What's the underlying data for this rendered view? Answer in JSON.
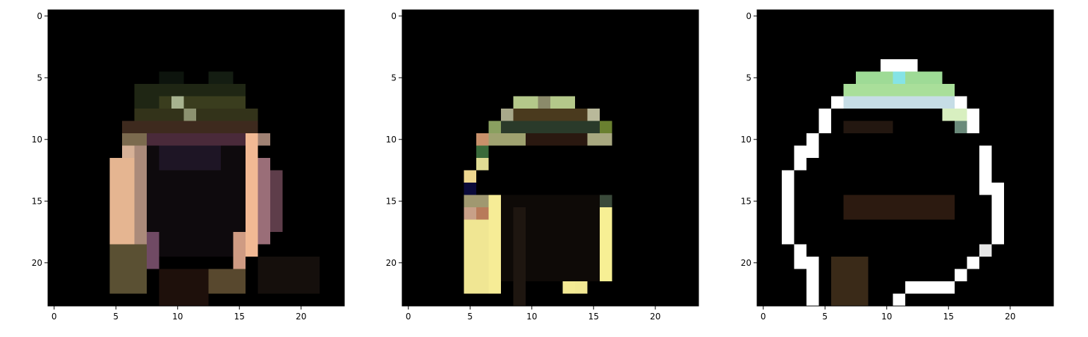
{
  "chart_data": [
    {
      "type": "heatmap",
      "image_size": [
        24,
        24
      ],
      "xlim": [
        -0.5,
        23.5
      ],
      "ylim": [
        23.5,
        -0.5
      ],
      "x_ticks": [
        0,
        5,
        10,
        15,
        20
      ],
      "y_ticks": [
        0,
        5,
        10,
        15,
        20
      ],
      "background": "#000000",
      "blocks": [
        {
          "x": [
            9,
            10
          ],
          "y": [
            5,
            5
          ],
          "color": "#0d140d"
        },
        {
          "x": [
            13,
            14
          ],
          "y": [
            5,
            5
          ],
          "color": "#141d12"
        },
        {
          "x": [
            7,
            15
          ],
          "y": [
            6,
            7
          ],
          "color": "#1f2614"
        },
        {
          "x": [
            9,
            15
          ],
          "y": [
            7,
            7
          ],
          "color": "#3a3d1e"
        },
        {
          "x": [
            10,
            10
          ],
          "y": [
            7,
            7
          ],
          "color": "#a7b38f"
        },
        {
          "x": [
            7,
            16
          ],
          "y": [
            8,
            8
          ],
          "color": "#33331a"
        },
        {
          "x": [
            11,
            11
          ],
          "y": [
            8,
            8
          ],
          "color": "#8c9270"
        },
        {
          "x": [
            6,
            16
          ],
          "y": [
            9,
            9
          ],
          "color": "#3e2a1e"
        },
        {
          "x": [
            6,
            7
          ],
          "y": [
            10,
            10
          ],
          "color": "#7b6a4e"
        },
        {
          "x": [
            8,
            15
          ],
          "y": [
            10,
            10
          ],
          "color": "#4a2a3a"
        },
        {
          "x": [
            16,
            17
          ],
          "y": [
            10,
            10
          ],
          "color": "#a08274"
        },
        {
          "x": [
            6,
            6
          ],
          "y": [
            11,
            20
          ],
          "color": "#d7b197"
        },
        {
          "x": [
            5,
            6
          ],
          "y": [
            12,
            18
          ],
          "color": "#e5b591"
        },
        {
          "x": [
            7,
            7
          ],
          "y": [
            11,
            19
          ],
          "color": "#aa8a7a"
        },
        {
          "x": [
            8,
            15
          ],
          "y": [
            11,
            19
          ],
          "color": "#0e0a0d"
        },
        {
          "x": [
            9,
            13
          ],
          "y": [
            11,
            12
          ],
          "color": "#1e1525"
        },
        {
          "x": [
            16,
            16
          ],
          "y": [
            10,
            19
          ],
          "color": "#f2b994"
        },
        {
          "x": [
            15,
            15
          ],
          "y": [
            18,
            20
          ],
          "color": "#cf9b83"
        },
        {
          "x": [
            17,
            17
          ],
          "y": [
            12,
            18
          ],
          "color": "#9a6e78"
        },
        {
          "x": [
            18,
            18
          ],
          "y": [
            13,
            17
          ],
          "color": "#5e3d4a"
        },
        {
          "x": [
            8,
            8
          ],
          "y": [
            18,
            20
          ],
          "color": "#704a64"
        },
        {
          "x": [
            5,
            7
          ],
          "y": [
            19,
            22
          ],
          "color": "#5a5033"
        },
        {
          "x": [
            13,
            15
          ],
          "y": [
            21,
            22
          ],
          "color": "#58482e"
        },
        {
          "x": [
            9,
            12
          ],
          "y": [
            21,
            23
          ],
          "color": "#1e100b"
        },
        {
          "x": [
            17,
            21
          ],
          "y": [
            20,
            22
          ],
          "color": "#150f0c"
        }
      ]
    },
    {
      "type": "heatmap",
      "image_size": [
        24,
        24
      ],
      "xlim": [
        -0.5,
        23.5
      ],
      "ylim": [
        23.5,
        -0.5
      ],
      "x_ticks": [
        0,
        5,
        10,
        15,
        20
      ],
      "y_ticks": [
        0,
        5,
        10,
        15,
        20
      ],
      "background": "#000000",
      "blocks": [
        {
          "x": [
            9,
            13
          ],
          "y": [
            7,
            7
          ],
          "color": "#b4c88a"
        },
        {
          "x": [
            11,
            11
          ],
          "y": [
            7,
            7
          ],
          "color": "#8b8a6a"
        },
        {
          "x": [
            8,
            15
          ],
          "y": [
            8,
            8
          ],
          "color": "#4a3a1e"
        },
        {
          "x": [
            8,
            8
          ],
          "y": [
            8,
            8
          ],
          "color": "#a8a88a"
        },
        {
          "x": [
            15,
            15
          ],
          "y": [
            8,
            8
          ],
          "color": "#b9b99a"
        },
        {
          "x": [
            7,
            16
          ],
          "y": [
            9,
            9
          ],
          "color": "#2a3a2a"
        },
        {
          "x": [
            7,
            7
          ],
          "y": [
            9,
            9
          ],
          "color": "#8aa060"
        },
        {
          "x": [
            16,
            16
          ],
          "y": [
            9,
            9
          ],
          "color": "#6a8030"
        },
        {
          "x": [
            6,
            9
          ],
          "y": [
            10,
            10
          ],
          "color": "#9fa270"
        },
        {
          "x": [
            6,
            6
          ],
          "y": [
            10,
            10
          ],
          "color": "#c8906a"
        },
        {
          "x": [
            10,
            14
          ],
          "y": [
            10,
            10
          ],
          "color": "#2a1810"
        },
        {
          "x": [
            15,
            16
          ],
          "y": [
            10,
            10
          ],
          "color": "#a8a880"
        },
        {
          "x": [
            6,
            6
          ],
          "y": [
            11,
            11
          ],
          "color": "#3a6a3a"
        },
        {
          "x": [
            6,
            6
          ],
          "y": [
            12,
            12
          ],
          "color": "#e1dc94"
        },
        {
          "x": [
            5,
            5
          ],
          "y": [
            13,
            13
          ],
          "color": "#efd890"
        },
        {
          "x": [
            5,
            5
          ],
          "y": [
            14,
            14
          ],
          "color": "#0a0a3a"
        },
        {
          "x": [
            5,
            6
          ],
          "y": [
            15,
            16
          ],
          "color": "#a09870"
        },
        {
          "x": [
            5,
            5
          ],
          "y": [
            16,
            16
          ],
          "color": "#c8a088"
        },
        {
          "x": [
            6,
            6
          ],
          "y": [
            16,
            16
          ],
          "color": "#b87a5a"
        },
        {
          "x": [
            7,
            7
          ],
          "y": [
            15,
            22
          ],
          "color": "#f6ec96"
        },
        {
          "x": [
            5,
            6
          ],
          "y": [
            17,
            22
          ],
          "color": "#f0e693"
        },
        {
          "x": [
            16,
            16
          ],
          "y": [
            15,
            15
          ],
          "color": "#3a4a3a"
        },
        {
          "x": [
            16,
            16
          ],
          "y": [
            16,
            21
          ],
          "color": "#f7ef94"
        },
        {
          "x": [
            15,
            15
          ],
          "y": [
            19,
            21
          ],
          "color": "#f5eb94"
        },
        {
          "x": [
            14,
            14
          ],
          "y": [
            20,
            22
          ],
          "color": "#f2e893"
        },
        {
          "x": [
            13,
            13
          ],
          "y": [
            22,
            22
          ],
          "color": "#f4ea94"
        },
        {
          "x": [
            8,
            15
          ],
          "y": [
            15,
            21
          ],
          "color": "#0e0a07"
        },
        {
          "x": [
            9,
            9
          ],
          "y": [
            16,
            23
          ],
          "color": "#1e1610"
        }
      ]
    },
    {
      "type": "heatmap",
      "image_size": [
        24,
        24
      ],
      "xlim": [
        -0.5,
        23.5
      ],
      "ylim": [
        23.5,
        -0.5
      ],
      "x_ticks": [
        0,
        5,
        10,
        15,
        20
      ],
      "y_ticks": [
        0,
        5,
        10,
        15,
        20
      ],
      "background": "#000000",
      "blocks": [
        {
          "x": [
            10,
            12
          ],
          "y": [
            4,
            4
          ],
          "color": "#ffffff"
        },
        {
          "x": [
            8,
            14
          ],
          "y": [
            5,
            5
          ],
          "color": "#9edb96"
        },
        {
          "x": [
            11,
            11
          ],
          "y": [
            5,
            5
          ],
          "color": "#85e3e6"
        },
        {
          "x": [
            7,
            15
          ],
          "y": [
            6,
            6
          ],
          "color": "#a9df9a"
        },
        {
          "x": [
            6,
            16
          ],
          "y": [
            7,
            7
          ],
          "color": "#c6dde6"
        },
        {
          "x": [
            6,
            6
          ],
          "y": [
            7,
            7
          ],
          "color": "#ffffff"
        },
        {
          "x": [
            16,
            16
          ],
          "y": [
            7,
            7
          ],
          "color": "#ffffff"
        },
        {
          "x": [
            5,
            5
          ],
          "y": [
            8,
            8
          ],
          "color": "#ffffff"
        },
        {
          "x": [
            15,
            16
          ],
          "y": [
            8,
            8
          ],
          "color": "#d8efc0"
        },
        {
          "x": [
            17,
            17
          ],
          "y": [
            8,
            8
          ],
          "color": "#ffffff"
        },
        {
          "x": [
            5,
            5
          ],
          "y": [
            9,
            9
          ],
          "color": "#ffffff"
        },
        {
          "x": [
            16,
            16
          ],
          "y": [
            9,
            9
          ],
          "color": "#6a8a7a"
        },
        {
          "x": [
            17,
            17
          ],
          "y": [
            9,
            9
          ],
          "color": "#ffffff"
        },
        {
          "x": [
            4,
            4
          ],
          "y": [
            10,
            11
          ],
          "color": "#ffffff"
        },
        {
          "x": [
            3,
            3
          ],
          "y": [
            11,
            12
          ],
          "color": "#ffffff"
        },
        {
          "x": [
            2,
            2
          ],
          "y": [
            13,
            18
          ],
          "color": "#ffffff"
        },
        {
          "x": [
            3,
            3
          ],
          "y": [
            19,
            20
          ],
          "color": "#ffffff"
        },
        {
          "x": [
            4,
            4
          ],
          "y": [
            20,
            23
          ],
          "color": "#ffffff"
        },
        {
          "x": [
            18,
            18
          ],
          "y": [
            11,
            14
          ],
          "color": "#ffffff"
        },
        {
          "x": [
            19,
            19
          ],
          "y": [
            14,
            18
          ],
          "color": "#ffffff"
        },
        {
          "x": [
            18,
            18
          ],
          "y": [
            19,
            19
          ],
          "color": "#e6e6e6"
        },
        {
          "x": [
            17,
            17
          ],
          "y": [
            20,
            20
          ],
          "color": "#ffffff"
        },
        {
          "x": [
            16,
            16
          ],
          "y": [
            21,
            21
          ],
          "color": "#ffffff"
        },
        {
          "x": [
            13,
            15
          ],
          "y": [
            22,
            22
          ],
          "color": "#ffffff"
        },
        {
          "x": [
            12,
            12
          ],
          "y": [
            22,
            22
          ],
          "color": "#ffffff"
        },
        {
          "x": [
            11,
            11
          ],
          "y": [
            23,
            23
          ],
          "color": "#ffffff"
        },
        {
          "x": [
            7,
            15
          ],
          "y": [
            15,
            16
          ],
          "color": "#2c1a10"
        },
        {
          "x": [
            6,
            8
          ],
          "y": [
            20,
            23
          ],
          "color": "#3a2a18"
        },
        {
          "x": [
            7,
            10
          ],
          "y": [
            9,
            9
          ],
          "color": "#231710"
        }
      ]
    }
  ]
}
